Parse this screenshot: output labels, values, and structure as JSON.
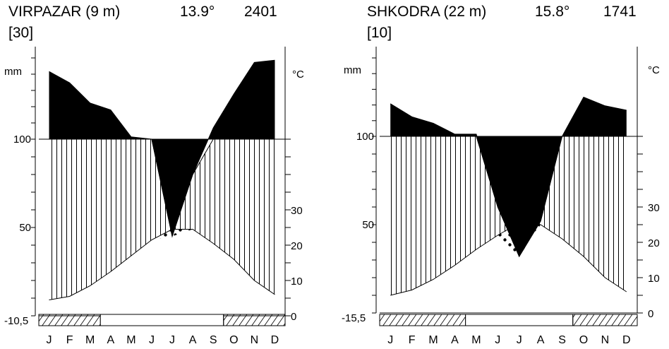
{
  "chart_data": [
    {
      "type": "climate-diagram",
      "station": "VIRPAZAR (9 m)",
      "mean_temp": "13.9°",
      "annual_precip": "2401",
      "years": "[30]",
      "precip_unit": "mm",
      "temp_unit": "°C",
      "months": [
        "J",
        "F",
        "M",
        "A",
        "M",
        "J",
        "J",
        "A",
        "S",
        "O",
        "N",
        "D"
      ],
      "precip_axis_labels": [
        "100",
        "50"
      ],
      "temp_axis_labels": [
        "30",
        "20",
        "10",
        "0"
      ],
      "min_temp_label": "-10,5",
      "temperature": [
        4.5,
        5.5,
        8.5,
        12.5,
        17,
        21.5,
        24.5,
        24.5,
        20.5,
        16,
        10,
        6
      ],
      "precipitation": [
        250,
        225,
        180,
        165,
        105,
        100,
        45,
        80,
        125,
        200,
        270,
        275
      ],
      "frost_months": [
        true,
        true,
        true,
        false,
        false,
        false,
        false,
        false,
        false,
        true,
        true,
        true
      ]
    },
    {
      "type": "climate-diagram",
      "station": "SHKODRA (22 m)",
      "mean_temp": "15.8°",
      "annual_precip": "1741",
      "years": "[10]",
      "precip_unit": "mm",
      "temp_unit": "°C",
      "months": [
        "J",
        "F",
        "M",
        "A",
        "M",
        "J",
        "J",
        "A",
        "S",
        "O",
        "N",
        "D"
      ],
      "precip_axis_labels": [
        "100",
        "50"
      ],
      "temp_axis_labels": [
        "30",
        "20",
        "10",
        "0"
      ],
      "min_temp_label": "-15,5",
      "temperature": [
        5,
        6.5,
        9.5,
        13.5,
        18,
        22,
        25.5,
        25,
        21,
        16,
        10,
        6
      ],
      "precipitation": [
        175,
        145,
        130,
        105,
        105,
        60,
        32,
        52,
        100,
        190,
        170,
        160
      ],
      "frost_months": [
        true,
        true,
        true,
        true,
        false,
        false,
        false,
        false,
        false,
        true,
        true,
        true
      ]
    }
  ]
}
